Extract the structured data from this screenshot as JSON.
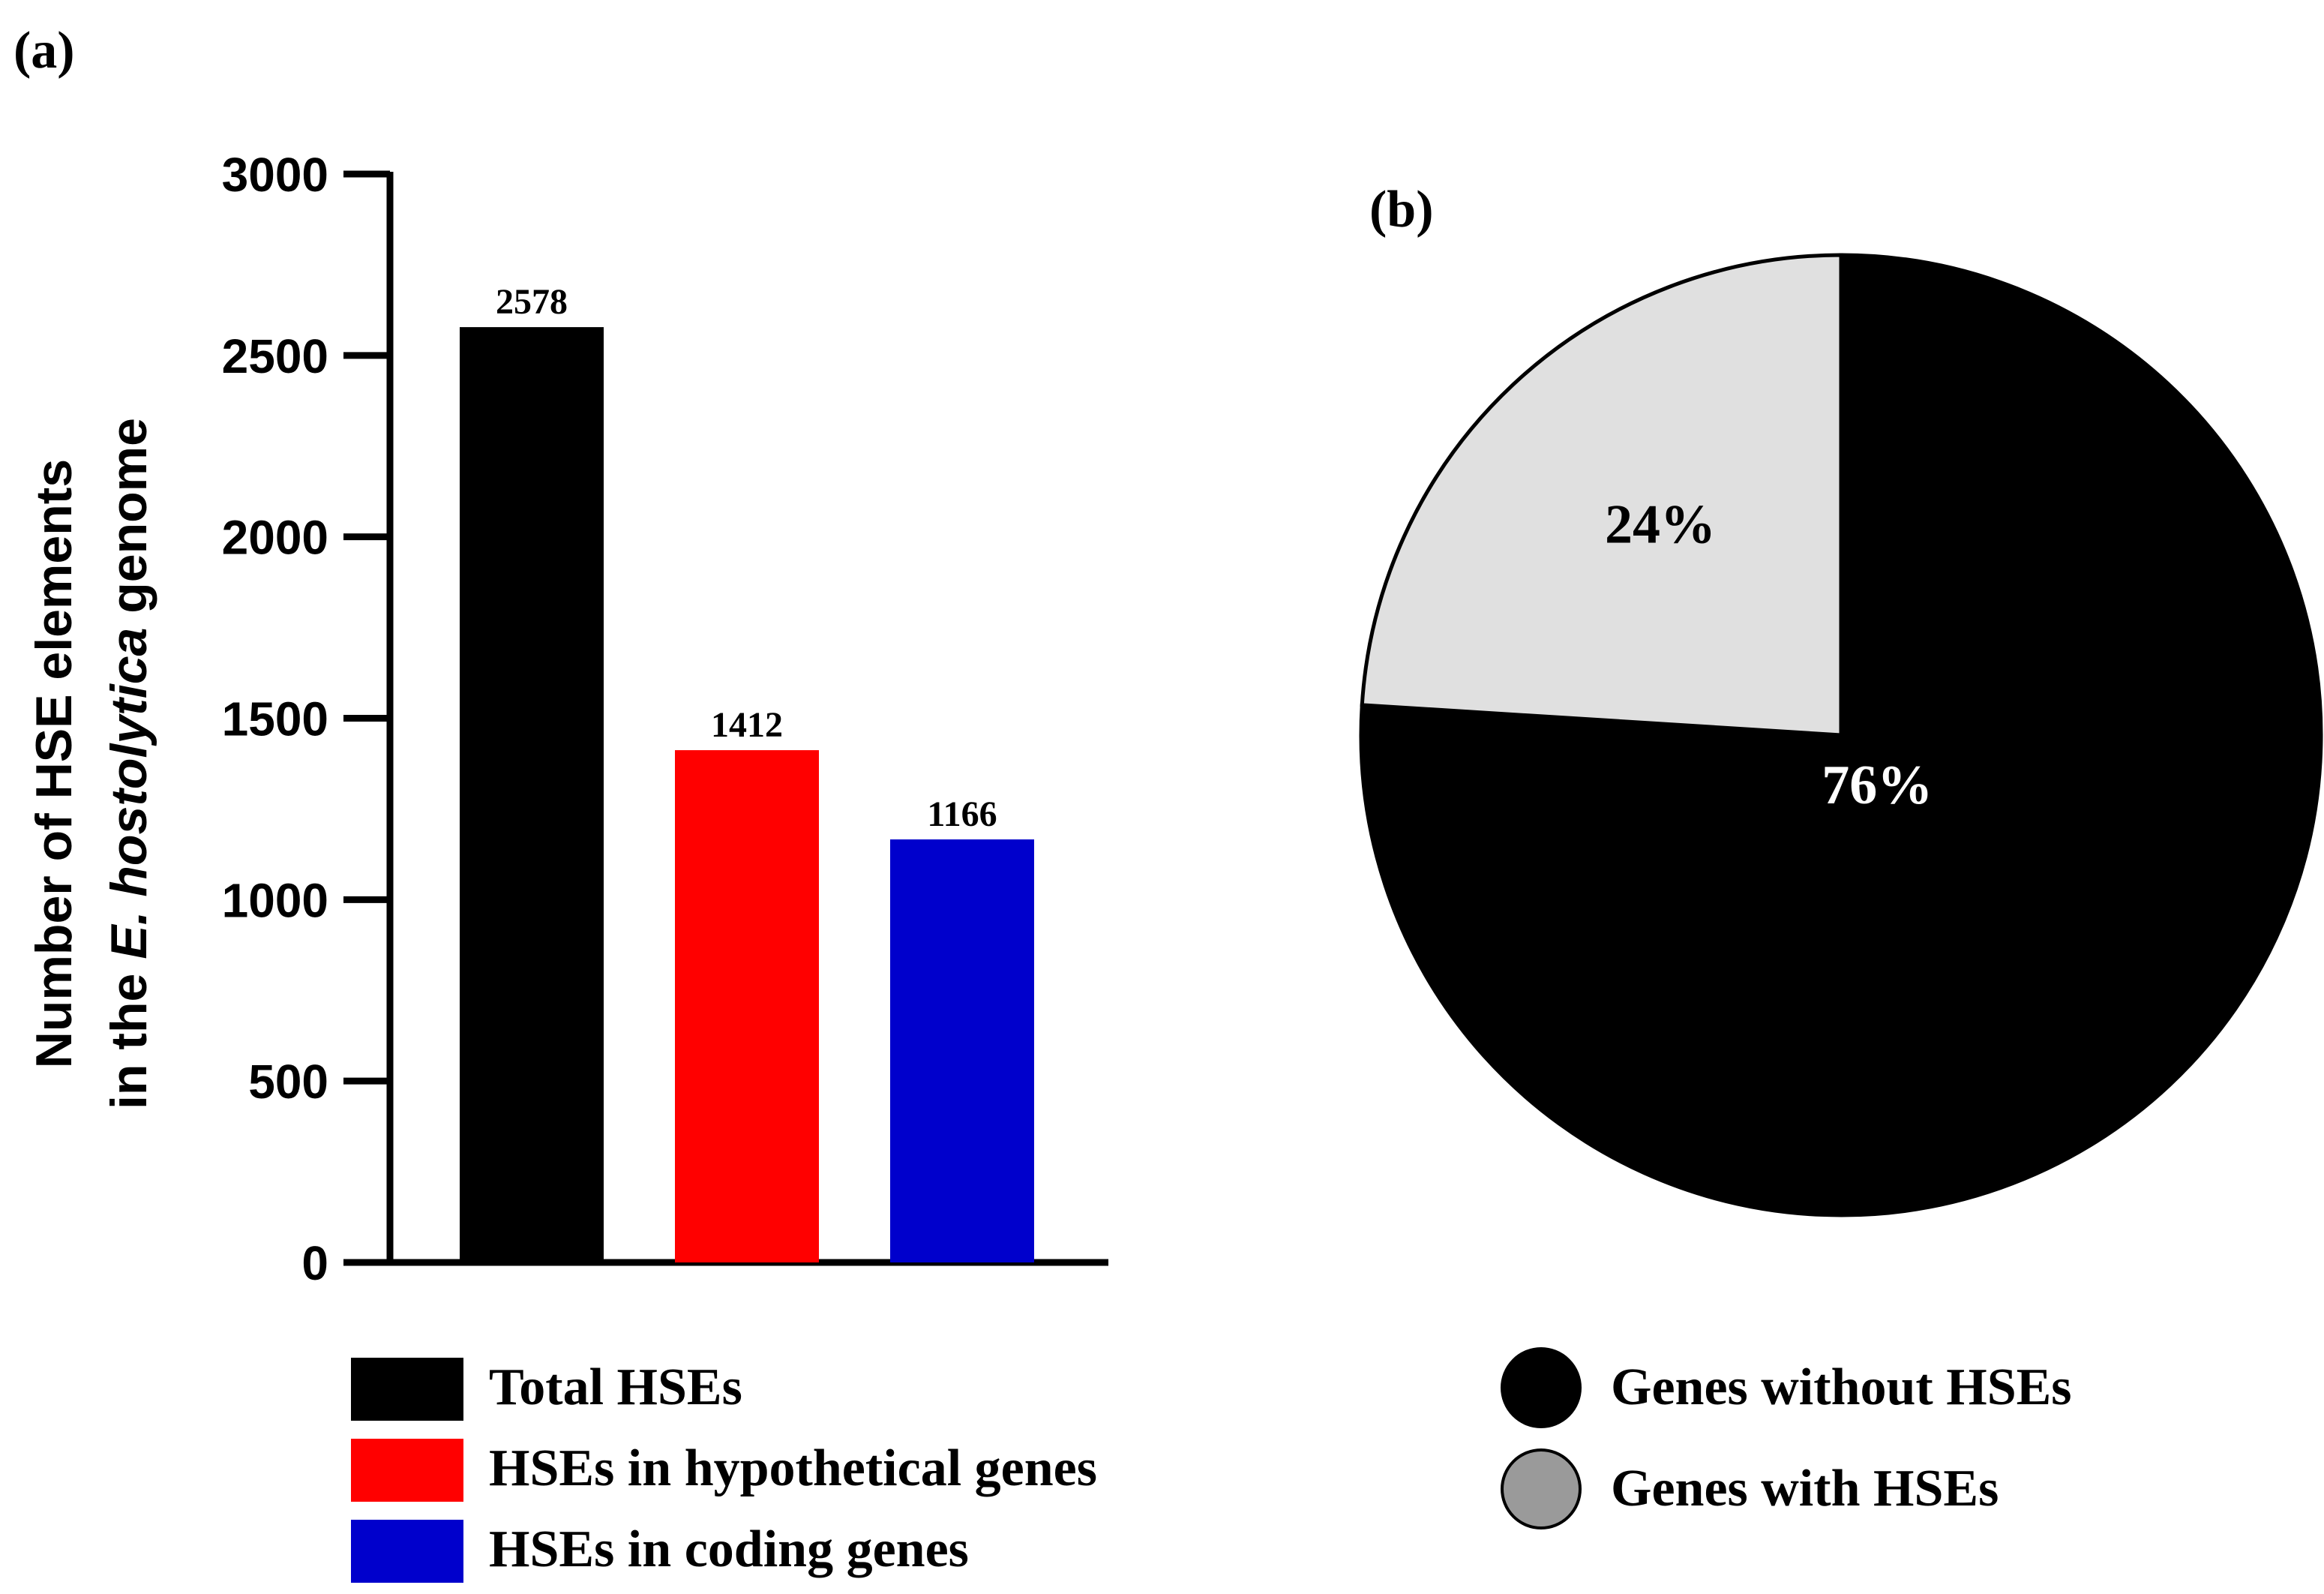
{
  "panels": {
    "a_label": "(a)",
    "b_label": "(b)"
  },
  "chart_data": [
    {
      "type": "bar",
      "ylabel_line1": "Number of HSE elements",
      "ylabel_line2_prefix": "in the ",
      "ylabel_line2_italic": "E. hostolytica",
      "ylabel_line2_suffix": " genome",
      "ylim": [
        0,
        3000
      ],
      "yticks": [
        0,
        500,
        1000,
        1500,
        2000,
        2500,
        3000
      ],
      "categories": [
        "Total HSEs",
        "HSEs in hypothetical genes",
        "HSEs in coding genes"
      ],
      "values": [
        2578,
        1412,
        1166
      ],
      "data_labels": [
        "2578",
        "1412",
        "1166"
      ],
      "colors": [
        "#000000",
        "#ff0000",
        "#0000cc"
      ],
      "legend": [
        {
          "label": "Total HSEs",
          "color": "#000000"
        },
        {
          "label": "HSEs in hypothetical genes",
          "color": "#ff0000"
        },
        {
          "label": "HSEs in coding genes",
          "color": "#0000cc"
        }
      ],
      "legend_placement": "bottom"
    },
    {
      "type": "pie",
      "slices": [
        {
          "label": "Genes without HSEs",
          "value": 76,
          "text": "76%",
          "color": "#000000",
          "text_color": "#ffffff"
        },
        {
          "label": "Genes with HSEs",
          "value": 24,
          "text": "24%",
          "color": "#e0e0e0",
          "text_color": "#000000"
        }
      ],
      "legend": [
        {
          "label": "Genes without HSEs",
          "color": "#000000"
        },
        {
          "label": "Genes with HSEs",
          "color": "#9a9a9a"
        }
      ],
      "legend_placement": "bottom"
    }
  ]
}
